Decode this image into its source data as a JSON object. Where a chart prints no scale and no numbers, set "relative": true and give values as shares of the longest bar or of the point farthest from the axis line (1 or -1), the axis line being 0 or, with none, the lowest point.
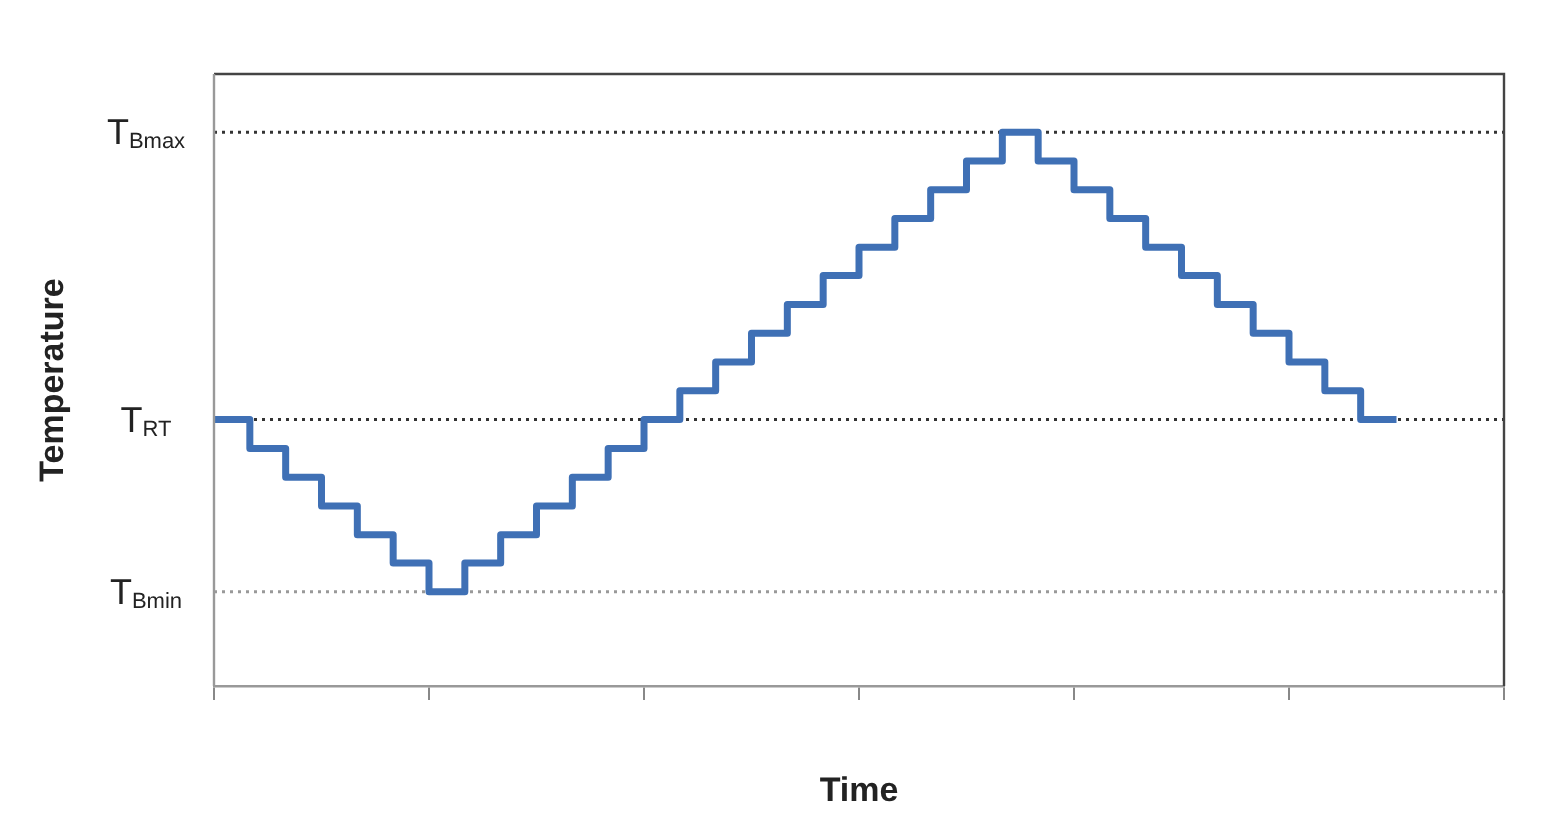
{
  "chart_data": {
    "type": "step",
    "xlabel": "Time",
    "ylabel": "Temperature",
    "relative": true,
    "tick_labels": false,
    "marker": "none",
    "line_style": "solid",
    "categories": [
      null,
      null,
      null,
      null,
      null,
      null,
      null,
      null,
      null,
      null,
      null,
      null,
      null,
      null,
      null,
      null,
      null,
      null,
      null,
      null,
      null,
      null,
      null,
      null,
      null,
      null,
      null,
      null,
      null,
      null,
      null,
      null,
      null,
      null,
      null,
      null,
      null
    ],
    "series": [
      {
        "color": "#3f70b5",
        "values": [
          0.481,
          0.429,
          0.377,
          0.325,
          0.273,
          0.222,
          0.17,
          0.222,
          0.273,
          0.325,
          0.377,
          0.429,
          0.481,
          0.533,
          0.585,
          0.637,
          0.689,
          0.741,
          0.792,
          0.844,
          0.896,
          0.948,
          1.0,
          0.948,
          0.896,
          0.844,
          0.792,
          0.741,
          0.689,
          0.637,
          0.585,
          0.533,
          0.481,
          0.481,
          null,
          null,
          null
        ]
      }
    ],
    "ref_lines": [
      {
        "axis": "y",
        "value": 1.0,
        "label": "T$_{Bmax}$",
        "color": "#333333",
        "line_style": "dotted"
      },
      {
        "axis": "y",
        "value": 0.481,
        "label": "T$_{RT}$",
        "color": "#333333",
        "line_style": "dotted"
      },
      {
        "axis": "y",
        "value": 0.17,
        "label": "T$_{Bmin}$",
        "color": "#999999",
        "line_style": "dotted"
      }
    ]
  }
}
